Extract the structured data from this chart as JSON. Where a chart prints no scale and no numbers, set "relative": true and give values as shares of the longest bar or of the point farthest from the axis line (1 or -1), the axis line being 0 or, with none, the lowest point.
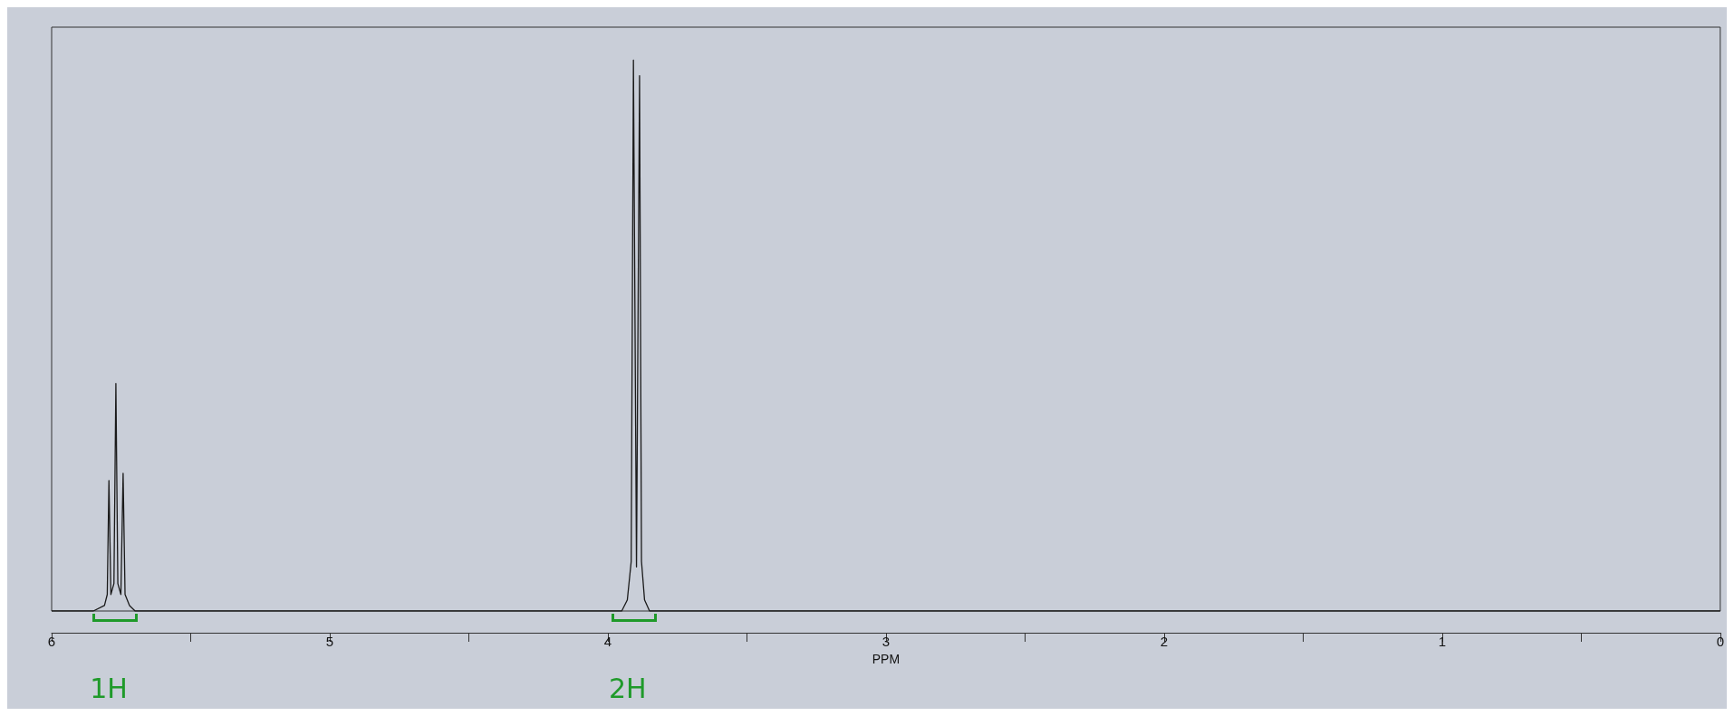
{
  "chart_data": {
    "type": "line",
    "relative": true,
    "xlabel": "PPM",
    "xlim": [
      6,
      0
    ],
    "xticks": [
      6,
      5,
      4,
      3,
      2,
      1,
      0
    ],
    "marker": "none",
    "grid": false,
    "series": [
      {
        "color": "#1a1a1a",
        "x": [
          6,
          5.85,
          5.81,
          5.8,
          5.794,
          5.787,
          5.776,
          5.769,
          5.762,
          5.751,
          5.743,
          5.736,
          5.72,
          5.7,
          3.95,
          3.93,
          3.916,
          3.908,
          3.897,
          3.886,
          3.879,
          3.868,
          3.85,
          0
        ],
        "values": [
          0,
          0,
          0.01,
          0.03,
          0.237,
          0.03,
          0.05,
          0.413,
          0.05,
          0.03,
          0.25,
          0.03,
          0.01,
          0,
          0,
          0.02,
          0.09,
          1,
          0.08,
          0.972,
          0.09,
          0.02,
          0,
          0
        ]
      }
    ],
    "annotations": [
      "1H",
      "2H"
    ]
  }
}
